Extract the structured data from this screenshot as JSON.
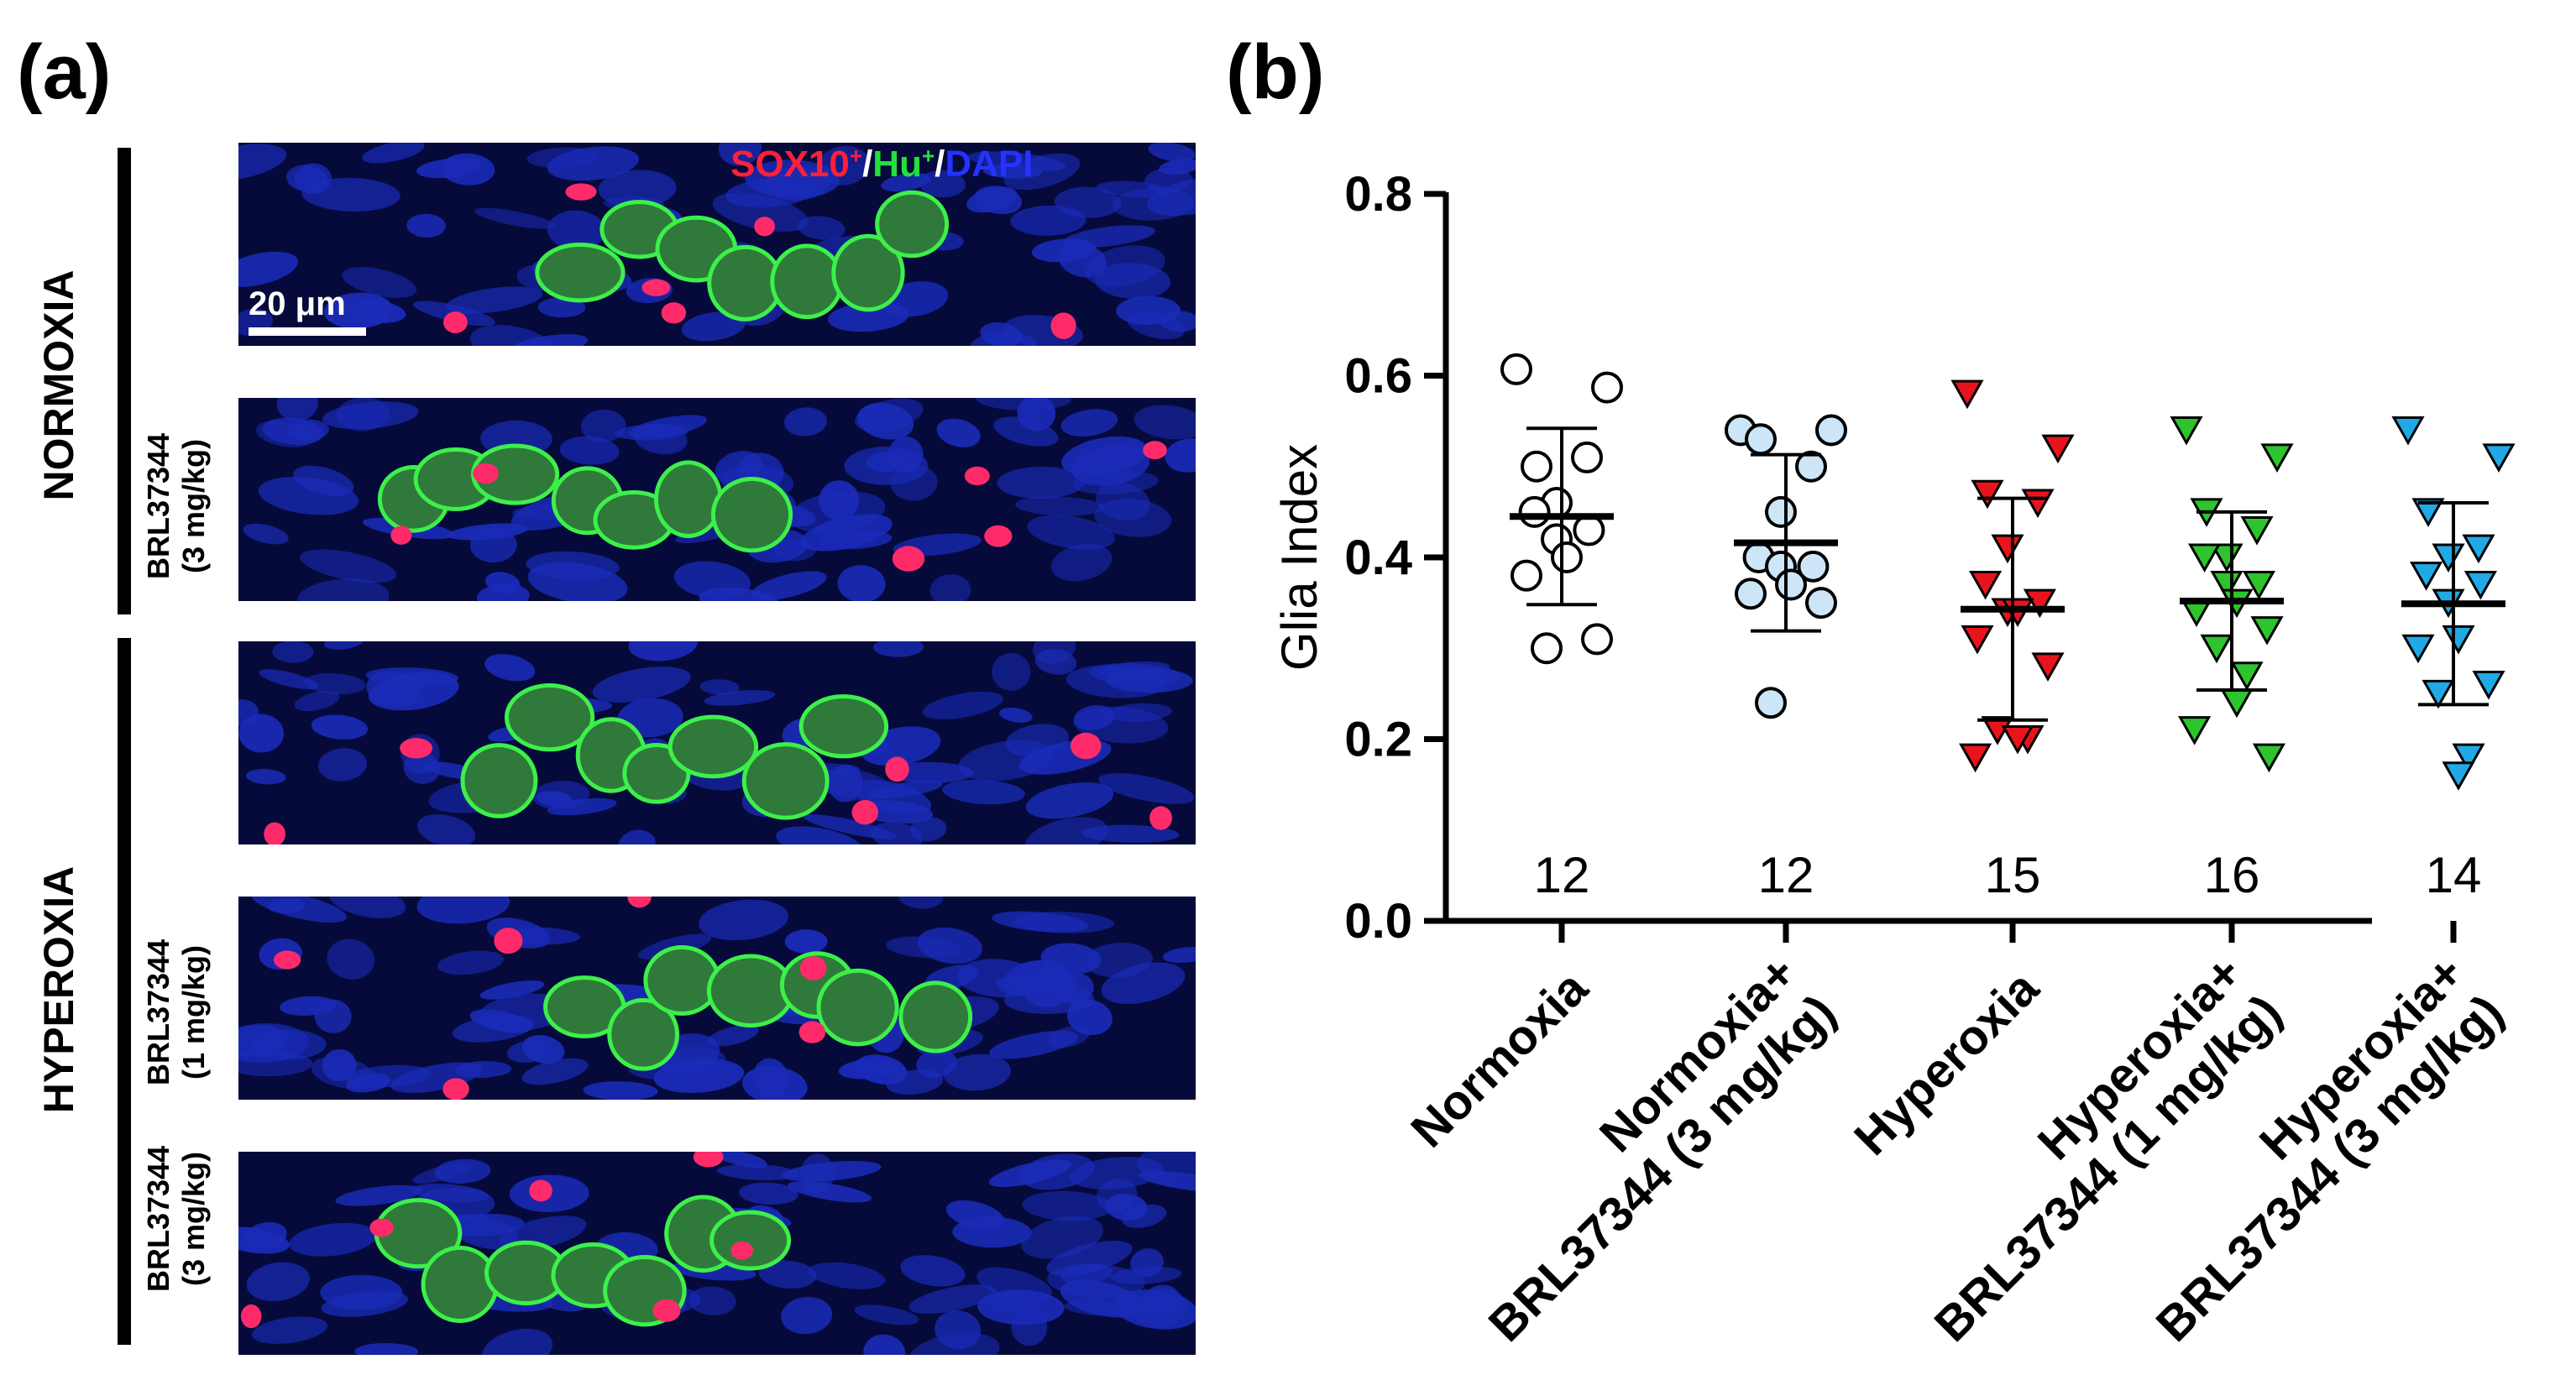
{
  "panel_a": {
    "label": "(a)",
    "groups": {
      "normoxia": "NORMOXIA",
      "hyperoxia": "HYPEROXIA"
    },
    "row_labels": [
      {
        "drug": "",
        "dose": ""
      },
      {
        "drug": "BRL37344",
        "dose": "(3 mg/kg)"
      },
      {
        "drug": "",
        "dose": ""
      },
      {
        "drug": "BRL37344",
        "dose": "(1 mg/kg)"
      },
      {
        "drug": "BRL37344",
        "dose": "(3 mg/kg)"
      }
    ],
    "stain_legend": {
      "sox10": "SOX10",
      "sox10_sup": "+",
      "hu": "Hu",
      "hu_sup": "+",
      "dapi": "DAPI",
      "sep1": "/",
      "sep2": "/",
      "colors": {
        "sox10": "#ff1f3a",
        "hu": "#22e03a",
        "dapi": "#2433ff"
      }
    },
    "scale_bar_text": "20 μm"
  },
  "panel_b": {
    "label": "(b)"
  },
  "chart_data": {
    "type": "scatter",
    "title": "",
    "ylabel": "Glia Index",
    "ylim": [
      0.0,
      0.8
    ],
    "yticks": [
      "0.0",
      "0.2",
      "0.4",
      "0.6",
      "0.8"
    ],
    "yticks_values": [
      0.0,
      0.2,
      0.4,
      0.6,
      0.8
    ],
    "categories": [
      [
        "Normoxia"
      ],
      [
        "Normoxia+",
        "BRL37344 (3 mg/kg)"
      ],
      [
        "Hyperoxia"
      ],
      [
        "Hyperoxia+",
        "BRL37344 (1 mg/kg)"
      ],
      [
        "Hyperoxia+",
        "BRL37344 (3 mg/kg)"
      ]
    ],
    "series": [
      {
        "n": "12",
        "marker": "circle",
        "fill": "#ffffff",
        "mean": 0.445,
        "sd": 0.097,
        "values": [
          0.607,
          0.587,
          0.5,
          0.51,
          0.46,
          0.45,
          0.43,
          0.42,
          0.4,
          0.38,
          0.31,
          0.3
        ]
      },
      {
        "n": "12",
        "marker": "circle",
        "fill": "#cce6f7",
        "mean": 0.416,
        "sd": 0.097,
        "values": [
          0.54,
          0.54,
          0.53,
          0.5,
          0.45,
          0.4,
          0.39,
          0.39,
          0.37,
          0.36,
          0.35,
          0.24
        ]
      },
      {
        "n": "15",
        "marker": "triangle-down",
        "fill": "#e8141c",
        "mean": 0.343,
        "sd": 0.122,
        "values": [
          0.58,
          0.52,
          0.47,
          0.46,
          0.41,
          0.37,
          0.35,
          0.34,
          0.34,
          0.31,
          0.28,
          0.21,
          0.2,
          0.2,
          0.18
        ]
      },
      {
        "n": "16",
        "marker": "triangle-down",
        "fill": "#2dc42d",
        "mean": 0.352,
        "sd": 0.098,
        "values": [
          0.54,
          0.51,
          0.45,
          0.43,
          0.4,
          0.4,
          0.37,
          0.37,
          0.35,
          0.34,
          0.32,
          0.3,
          0.27,
          0.24,
          0.21,
          0.18
        ]
      },
      {
        "n": "14",
        "marker": "triangle-down",
        "fill": "#21a9e6",
        "mean": 0.349,
        "sd": 0.111,
        "values": [
          0.54,
          0.51,
          0.45,
          0.41,
          0.4,
          0.38,
          0.37,
          0.35,
          0.31,
          0.3,
          0.26,
          0.25,
          0.18,
          0.16
        ]
      }
    ],
    "grid": false,
    "legend": "none"
  }
}
